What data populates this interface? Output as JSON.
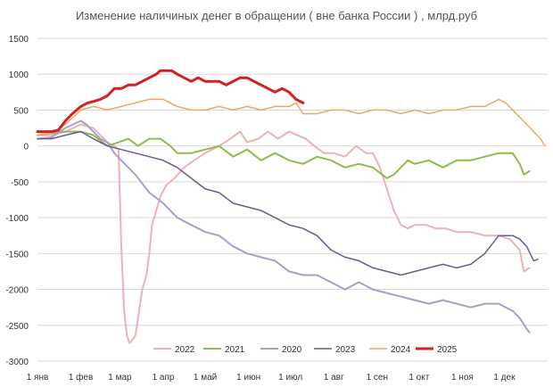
{
  "chart_data": {
    "type": "line",
    "title": "Изменение наличиных денег в обращении ( вне банка России ) , млрд.руб",
    "xlabel": "",
    "ylabel": "",
    "ylim": [
      -3000,
      1500
    ],
    "xlim": [
      0,
      365
    ],
    "y_ticks": [
      -3000,
      -2500,
      -2000,
      -1500,
      -1000,
      -500,
      0,
      500,
      1000,
      1500
    ],
    "y_tick_labels": [
      "-3000",
      "-2500",
      "-2000",
      "-1500",
      "-1000",
      "-500",
      "0",
      "500",
      "1000",
      "1500"
    ],
    "x_ticks": [
      0,
      31,
      59,
      90,
      120,
      151,
      181,
      212,
      243,
      273,
      304,
      334
    ],
    "x_tick_labels": [
      "1 янв",
      "1 фев",
      "1 мар",
      "1 апр",
      "1 май",
      "1 июн",
      "1 июл",
      "1 авг",
      "1 сен",
      "1 окт",
      "1 ноя",
      "1 дек"
    ],
    "grid": "horizontal",
    "legend_position": "bottom",
    "series": [
      {
        "name": "2022",
        "color": "#e8b4b8",
        "width": 2,
        "x": [
          0,
          10,
          20,
          31,
          40,
          45,
          50,
          55,
          58,
          60,
          62,
          64,
          66,
          68,
          70,
          72,
          75,
          78,
          80,
          82,
          85,
          88,
          92,
          98,
          105,
          112,
          120,
          130,
          138,
          145,
          150,
          158,
          165,
          172,
          180,
          186,
          192,
          198,
          205,
          212,
          220,
          228,
          235,
          240,
          245,
          250,
          255,
          260,
          265,
          270,
          278,
          285,
          292,
          300,
          310,
          320,
          330,
          338,
          345,
          348,
          352
        ],
        "y": [
          150,
          150,
          200,
          300,
          250,
          150,
          50,
          0,
          -50,
          -1400,
          -2300,
          -2650,
          -2750,
          -2700,
          -2650,
          -2400,
          -2000,
          -1800,
          -1500,
          -1100,
          -900,
          -700,
          -550,
          -450,
          -300,
          -200,
          -100,
          0,
          100,
          200,
          50,
          100,
          200,
          100,
          200,
          150,
          100,
          0,
          -100,
          -100,
          -150,
          0,
          -100,
          -100,
          -300,
          -600,
          -900,
          -1100,
          -1150,
          -1100,
          -1100,
          -1150,
          -1150,
          -1200,
          -1200,
          -1250,
          -1250,
          -1300,
          -1450,
          -1750,
          -1700
        ]
      },
      {
        "name": "2021",
        "color": "#8fbc4a",
        "width": 2,
        "x": [
          0,
          10,
          20,
          31,
          40,
          50,
          58,
          65,
          72,
          80,
          88,
          95,
          100,
          110,
          120,
          130,
          140,
          150,
          160,
          170,
          180,
          190,
          200,
          210,
          220,
          230,
          240,
          250,
          255,
          260,
          265,
          270,
          280,
          290,
          300,
          310,
          320,
          330,
          340,
          345,
          348,
          352
        ],
        "y": [
          150,
          180,
          200,
          200,
          150,
          0,
          50,
          100,
          0,
          100,
          100,
          0,
          -100,
          -100,
          -50,
          0,
          -150,
          -50,
          -200,
          -100,
          -200,
          -250,
          -150,
          -200,
          -300,
          -250,
          -300,
          -450,
          -400,
          -300,
          -200,
          -250,
          -200,
          -300,
          -200,
          -200,
          -150,
          -100,
          -100,
          -250,
          -400,
          -350
        ]
      },
      {
        "name": "2020",
        "color": "#a9a0c8",
        "width": 2,
        "x": [
          0,
          10,
          20,
          31,
          35,
          40,
          45,
          50,
          55,
          60,
          70,
          80,
          90,
          100,
          110,
          120,
          130,
          140,
          150,
          160,
          170,
          180,
          190,
          200,
          210,
          220,
          230,
          240,
          250,
          260,
          270,
          280,
          290,
          300,
          310,
          320,
          330,
          340,
          345,
          350,
          352
        ],
        "y": [
          100,
          120,
          250,
          350,
          300,
          200,
          100,
          50,
          -100,
          -200,
          -400,
          -650,
          -800,
          -1000,
          -1100,
          -1200,
          -1250,
          -1400,
          -1500,
          -1550,
          -1600,
          -1750,
          -1800,
          -1800,
          -1900,
          -2000,
          -1900,
          -2000,
          -2050,
          -2100,
          -2150,
          -2200,
          -2150,
          -2200,
          -2250,
          -2200,
          -2200,
          -2300,
          -2400,
          -2550,
          -2600
        ]
      },
      {
        "name": "2023",
        "color": "#6a5d8e",
        "width": 1.5,
        "x": [
          0,
          10,
          20,
          31,
          40,
          50,
          60,
          70,
          80,
          90,
          100,
          110,
          120,
          130,
          140,
          150,
          160,
          170,
          180,
          190,
          200,
          210,
          220,
          230,
          240,
          250,
          260,
          270,
          280,
          290,
          300,
          310,
          320,
          330,
          335,
          340,
          345,
          350,
          355,
          358
        ],
        "y": [
          100,
          100,
          150,
          200,
          100,
          0,
          -50,
          -100,
          -150,
          -200,
          -300,
          -450,
          -600,
          -650,
          -800,
          -850,
          -900,
          -1000,
          -1100,
          -1150,
          -1250,
          -1450,
          -1550,
          -1600,
          -1700,
          -1750,
          -1800,
          -1750,
          -1700,
          -1650,
          -1700,
          -1650,
          -1500,
          -1250,
          -1250,
          -1250,
          -1300,
          -1400,
          -1600,
          -1580
        ]
      },
      {
        "name": "2024",
        "color": "#f0a860",
        "width": 1.5,
        "x": [
          0,
          10,
          20,
          31,
          40,
          50,
          60,
          70,
          80,
          90,
          100,
          110,
          120,
          130,
          140,
          150,
          160,
          170,
          180,
          185,
          190,
          200,
          210,
          220,
          230,
          240,
          250,
          260,
          270,
          280,
          290,
          300,
          310,
          320,
          325,
          330,
          335,
          340,
          345,
          350,
          355,
          360,
          363
        ],
        "y": [
          150,
          180,
          300,
          500,
          550,
          500,
          550,
          600,
          650,
          650,
          550,
          500,
          500,
          550,
          500,
          550,
          500,
          550,
          550,
          600,
          450,
          450,
          500,
          500,
          450,
          500,
          500,
          450,
          500,
          450,
          500,
          500,
          550,
          550,
          600,
          650,
          600,
          500,
          400,
          300,
          200,
          100,
          0
        ]
      },
      {
        "name": "2025",
        "color": "#d32020",
        "width": 3,
        "x": [
          0,
          5,
          10,
          15,
          20,
          25,
          31,
          36,
          40,
          45,
          50,
          55,
          60,
          65,
          70,
          75,
          80,
          85,
          88,
          92,
          96,
          100,
          105,
          110,
          115,
          120,
          125,
          130,
          135,
          140,
          145,
          150,
          155,
          160,
          165,
          170,
          175,
          180,
          185,
          190
        ],
        "y": [
          200,
          200,
          200,
          220,
          350,
          450,
          550,
          600,
          620,
          650,
          700,
          800,
          800,
          850,
          850,
          900,
          950,
          1000,
          1050,
          1050,
          1050,
          1000,
          950,
          900,
          950,
          900,
          900,
          900,
          850,
          900,
          950,
          950,
          900,
          850,
          800,
          750,
          800,
          750,
          650,
          600
        ]
      }
    ]
  }
}
